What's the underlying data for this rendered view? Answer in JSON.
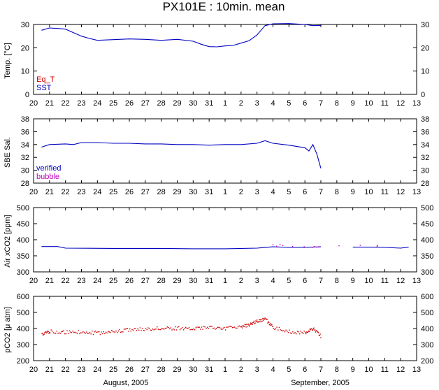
{
  "title": "PX101E : 10min. mean",
  "month_labels": [
    "August, 2005",
    "September, 2005"
  ],
  "x_tick_labels": [
    "20",
    "21",
    "22",
    "23",
    "24",
    "25",
    "26",
    "27",
    "28",
    "29",
    "30",
    "31",
    "1",
    "2",
    "3",
    "4",
    "5",
    "6",
    "7",
    "8",
    "9",
    "10",
    "11",
    "12",
    "13"
  ],
  "chart_data": [
    {
      "type": "line",
      "ylabel": "Temp. [°C]",
      "ylim": [
        0,
        30
      ],
      "yticks": [
        0,
        10,
        20,
        30
      ],
      "x_unit": "date (Aug 20 – Sep 13, 2005)",
      "legend": [
        {
          "name": "Eq_T",
          "color": "#d00000"
        },
        {
          "name": "SST",
          "color": "#0000c0"
        }
      ],
      "series": [
        {
          "name": "SST",
          "color": "#0000c0",
          "x": [
            "2005-08-20T12:00",
            "2005-08-21T00:00",
            "2005-08-21T12:00",
            "2005-08-22T00:00",
            "2005-08-22T12:00",
            "2005-08-23T00:00",
            "2005-08-23T12:00",
            "2005-08-24T00:00",
            "2005-08-25T00:00",
            "2005-08-26T00:00",
            "2005-08-27T00:00",
            "2005-08-28T00:00",
            "2005-08-29T00:00",
            "2005-08-30T00:00",
            "2005-08-30T12:00",
            "2005-08-31T00:00",
            "2005-08-31T12:00",
            "2005-09-01T00:00",
            "2005-09-01T12:00",
            "2005-09-02T00:00",
            "2005-09-02T12:00",
            "2005-09-03T00:00",
            "2005-09-03T12:00",
            "2005-09-04T00:00",
            "2005-09-05T00:00",
            "2005-09-06T00:00",
            "2005-09-06T12:00",
            "2005-09-07T00:00"
          ],
          "y": [
            27.5,
            28.5,
            28.3,
            28.0,
            26.5,
            25.0,
            24.0,
            23.2,
            23.5,
            23.8,
            23.6,
            23.2,
            23.6,
            22.8,
            21.5,
            20.5,
            20.4,
            20.8,
            21.0,
            22.0,
            23.0,
            25.5,
            29.5,
            30.3,
            30.4,
            30.0,
            29.5,
            29.6
          ]
        }
      ]
    },
    {
      "type": "line",
      "ylabel": "SBE Sal.",
      "ylim": [
        28,
        38
      ],
      "yticks": [
        28,
        30,
        32,
        34,
        36,
        38
      ],
      "legend": [
        {
          "name": "verified",
          "color": "#0000c0"
        },
        {
          "name": "bubble",
          "color": "#c000c0"
        }
      ],
      "series": [
        {
          "name": "verified",
          "color": "#0000c0",
          "x": [
            "2005-08-20T12:00",
            "2005-08-21T00:00",
            "2005-08-22T00:00",
            "2005-08-22T12:00",
            "2005-08-23T00:00",
            "2005-08-24T00:00",
            "2005-08-25T00:00",
            "2005-08-26T00:00",
            "2005-08-27T00:00",
            "2005-08-28T00:00",
            "2005-08-29T00:00",
            "2005-08-30T00:00",
            "2005-08-31T00:00",
            "2005-09-01T00:00",
            "2005-09-02T00:00",
            "2005-09-03T00:00",
            "2005-09-03T12:00",
            "2005-09-04T00:00",
            "2005-09-05T00:00",
            "2005-09-06T00:00",
            "2005-09-06T06:00",
            "2005-09-06T12:00",
            "2005-09-06T18:00",
            "2005-09-07T00:00"
          ],
          "y": [
            33.6,
            34.0,
            34.1,
            34.0,
            34.3,
            34.3,
            34.2,
            34.2,
            34.1,
            34.1,
            34.0,
            34.0,
            33.9,
            34.0,
            34.0,
            34.2,
            34.6,
            34.2,
            33.9,
            33.5,
            33.0,
            34.0,
            32.5,
            30.3
          ]
        }
      ]
    },
    {
      "type": "line",
      "ylabel": "Air xCO2 [ppm]",
      "ylim": [
        300,
        500
      ],
      "yticks": [
        300,
        350,
        400,
        450,
        500
      ],
      "series": [
        {
          "name": "",
          "color": "#0000c0",
          "x": [
            "2005-08-20T12:00",
            "2005-08-21T12:00",
            "2005-08-22T00:00",
            "2005-08-25T00:00",
            "2005-08-28T00:00",
            "2005-08-30T00:00",
            "2005-09-01T00:00",
            "2005-09-03T00:00",
            "2005-09-04T00:00",
            "2005-09-05T00:00",
            "2005-09-06T00:00",
            "2005-09-07T00:00"
          ],
          "y": [
            379,
            379,
            374,
            373,
            373,
            372,
            372,
            374,
            378,
            376,
            376,
            378
          ]
        },
        {
          "name": "",
          "color": "#0000c0",
          "x": [
            "2005-09-09T00:00",
            "2005-09-10T00:00",
            "2005-09-11T00:00",
            "2005-09-12T00:00",
            "2005-09-12T12:00"
          ],
          "y": [
            377,
            377,
            376,
            374,
            377
          ]
        },
        {
          "name": "",
          "color": "#c000c0",
          "marker": "dots",
          "x": [
            "2005-09-04T00:00",
            "2005-09-04T12:00",
            "2005-09-06T12:00",
            "2005-09-07T00:00",
            "2005-09-10T12:00"
          ],
          "y": [
            383,
            384,
            381,
            380,
            382
          ]
        }
      ]
    },
    {
      "type": "scatter",
      "ylabel": "pCO2 [μ atm]",
      "ylim": [
        200,
        600
      ],
      "yticks": [
        200,
        300,
        400,
        500,
        600
      ],
      "series": [
        {
          "name": "",
          "color": "#d00000",
          "x": [
            "2005-08-20T12:00",
            "2005-08-21T00:00",
            "2005-08-22T00:00",
            "2005-08-23T00:00",
            "2005-08-24T00:00",
            "2005-08-25T00:00",
            "2005-08-26T00:00",
            "2005-08-27T00:00",
            "2005-08-28T00:00",
            "2005-08-29T00:00",
            "2005-08-30T00:00",
            "2005-08-31T00:00",
            "2005-09-01T00:00",
            "2005-09-02T00:00",
            "2005-09-02T12:00",
            "2005-09-03T00:00",
            "2005-09-03T12:00",
            "2005-09-04T00:00",
            "2005-09-05T00:00",
            "2005-09-06T00:00",
            "2005-09-06T12:00",
            "2005-09-07T00:00"
          ],
          "y": [
            365,
            385,
            380,
            380,
            375,
            385,
            395,
            400,
            405,
            405,
            405,
            410,
            405,
            415,
            425,
            450,
            460,
            410,
            385,
            375,
            400,
            350
          ]
        }
      ]
    }
  ]
}
